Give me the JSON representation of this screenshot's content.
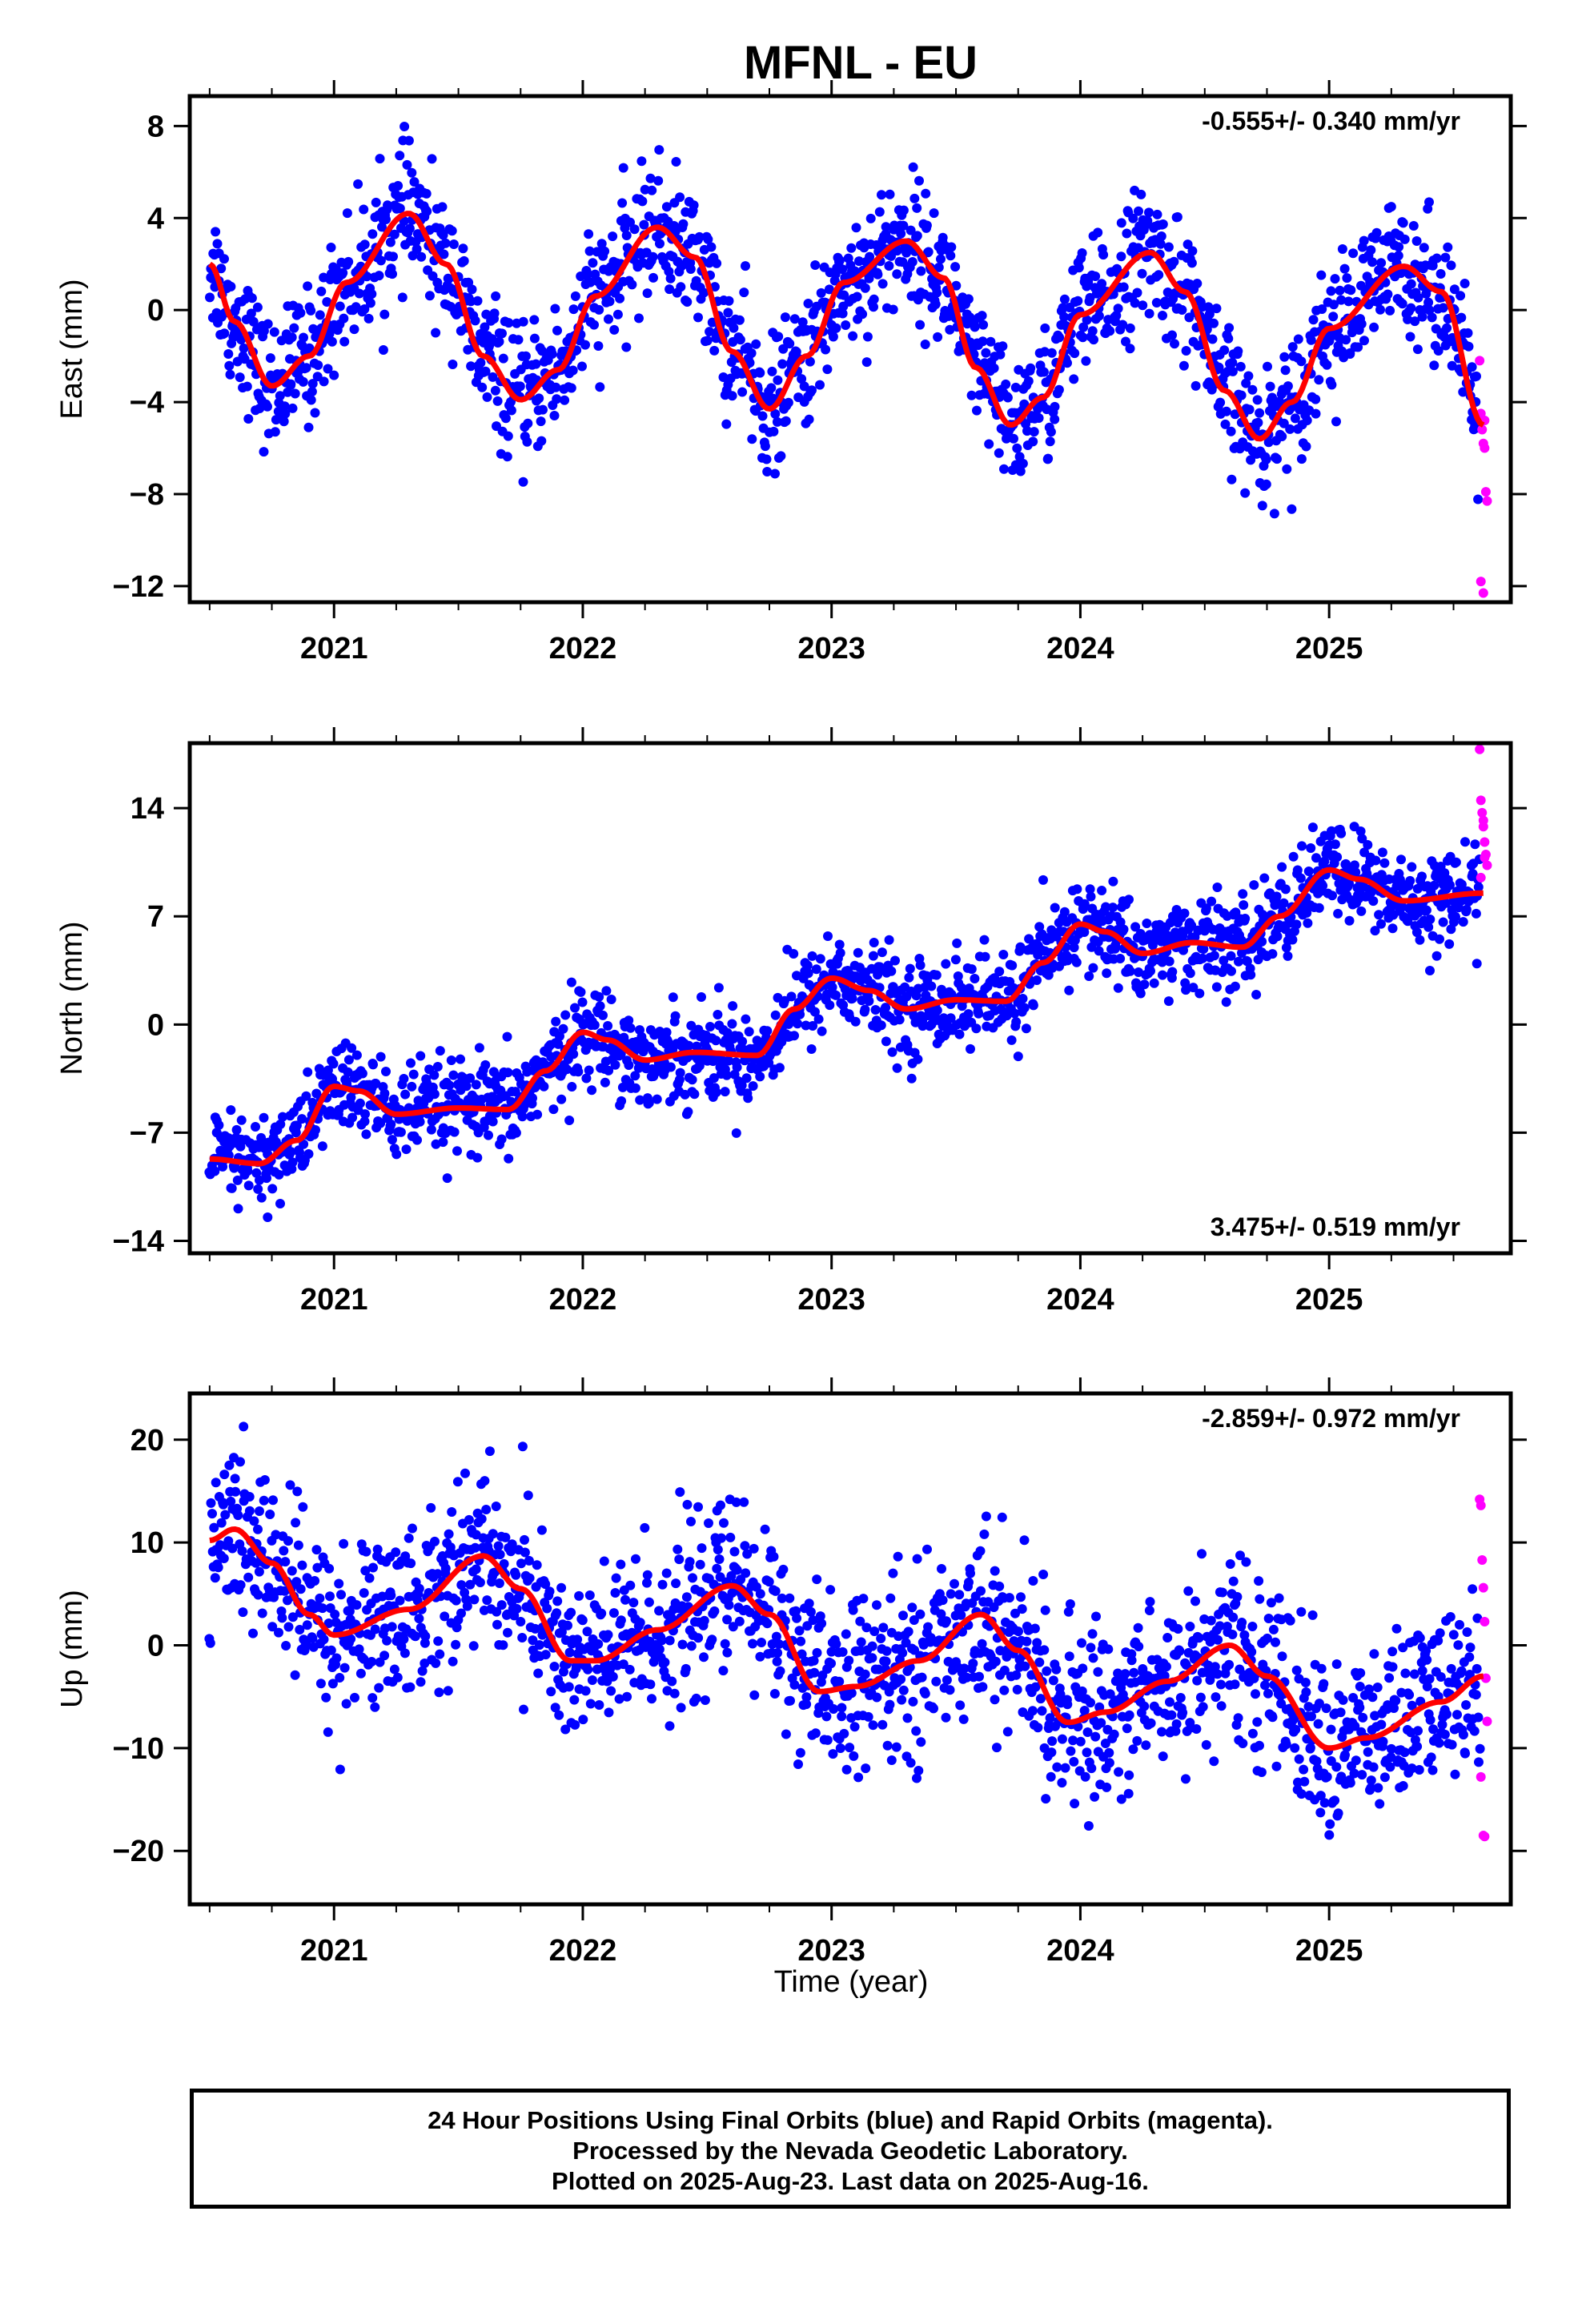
{
  "title": "MFNL - EU",
  "xlabel": "Time (year)",
  "footer": {
    "line1": "24 Hour Positions Using Final Orbits (blue) and Rapid Orbits (magenta).",
    "line2": "Processed by the Nevada Geodetic Laboratory.",
    "line3": "Plotted on 2025-Aug-23. Last data on 2025-Aug-16."
  },
  "colors": {
    "final": "#0000ff",
    "rapid": "#ff00ff",
    "fit": "#ff0000",
    "axes": "#000000"
  },
  "chart_data": [
    {
      "type": "scatter",
      "component": "East",
      "ylabel": "East (mm)",
      "rate": "-0.555+/- 0.340 mm/yr",
      "rate_position": "top-right",
      "xlim": [
        2020.42,
        2025.73
      ],
      "ylim": [
        -12.7,
        9.3
      ],
      "yticks": [
        8,
        4,
        0,
        -4,
        -8,
        -12
      ],
      "ytick_labels": [
        "8",
        "4",
        "0",
        "−4",
        "−8",
        "−12"
      ],
      "xticks": [
        2021,
        2022,
        2023,
        2024,
        2025
      ],
      "xtick_labels": [
        "2021",
        "2022",
        "2023",
        "2024",
        "2025"
      ],
      "trend": [
        [
          2020.5,
          2.0
        ],
        [
          2020.6,
          -0.5
        ],
        [
          2020.75,
          -3.3
        ],
        [
          2020.9,
          -2.0
        ],
        [
          2021.05,
          1.2
        ],
        [
          2021.3,
          4.2
        ],
        [
          2021.45,
          2.0
        ],
        [
          2021.6,
          -2.0
        ],
        [
          2021.75,
          -3.9
        ],
        [
          2021.9,
          -2.6
        ],
        [
          2022.05,
          0.6
        ],
        [
          2022.3,
          3.6
        ],
        [
          2022.45,
          2.3
        ],
        [
          2022.6,
          -1.8
        ],
        [
          2022.75,
          -4.3
        ],
        [
          2022.9,
          -2.0
        ],
        [
          2023.05,
          1.2
        ],
        [
          2023.3,
          3.0
        ],
        [
          2023.45,
          1.4
        ],
        [
          2023.58,
          -2.5
        ],
        [
          2023.72,
          -5.0
        ],
        [
          2023.85,
          -3.8
        ],
        [
          2024.0,
          -0.2
        ],
        [
          2024.28,
          2.5
        ],
        [
          2024.42,
          0.8
        ],
        [
          2024.58,
          -3.5
        ],
        [
          2024.72,
          -5.6
        ],
        [
          2024.85,
          -4.0
        ],
        [
          2025.0,
          -0.8
        ],
        [
          2025.3,
          1.9
        ],
        [
          2025.45,
          0.8
        ],
        [
          2025.62,
          -5.0
        ]
      ],
      "scatter_amplitude": 1.4,
      "rapid": [
        [
          2025.605,
          -2.2
        ],
        [
          2025.61,
          -4.5
        ],
        [
          2025.615,
          -5.2
        ],
        [
          2025.62,
          -5.8
        ],
        [
          2025.625,
          -6.0
        ],
        [
          2025.63,
          -7.9
        ],
        [
          2025.635,
          -8.3
        ],
        [
          2025.61,
          -11.8
        ],
        [
          2025.62,
          -12.3
        ],
        [
          2025.625,
          -4.8
        ]
      ]
    },
    {
      "type": "scatter",
      "component": "North",
      "ylabel": "North (mm)",
      "rate": "3.475+/- 0.519 mm/yr",
      "rate_position": "bottom-right",
      "xlim": [
        2020.42,
        2025.73
      ],
      "ylim": [
        -14.8,
        18.2
      ],
      "yticks": [
        14,
        7,
        0,
        -7,
        -14
      ],
      "ytick_labels": [
        "14",
        "7",
        "0",
        "−7",
        "−14"
      ],
      "xticks": [
        2021,
        2022,
        2023,
        2024,
        2025
      ],
      "xtick_labels": [
        "2021",
        "2022",
        "2023",
        "2024",
        "2025"
      ],
      "trend": [
        [
          2020.5,
          -8.7
        ],
        [
          2020.7,
          -9.0
        ],
        [
          2020.85,
          -7.5
        ],
        [
          2021.0,
          -4.0
        ],
        [
          2021.1,
          -4.3
        ],
        [
          2021.25,
          -5.8
        ],
        [
          2021.5,
          -5.4
        ],
        [
          2021.7,
          -5.5
        ],
        [
          2021.85,
          -3.0
        ],
        [
          2022.0,
          -0.5
        ],
        [
          2022.1,
          -1.0
        ],
        [
          2022.25,
          -2.3
        ],
        [
          2022.45,
          -1.8
        ],
        [
          2022.7,
          -2.0
        ],
        [
          2022.85,
          1.0
        ],
        [
          2023.0,
          3.0
        ],
        [
          2023.15,
          2.2
        ],
        [
          2023.3,
          1.0
        ],
        [
          2023.5,
          1.6
        ],
        [
          2023.7,
          1.5
        ],
        [
          2023.85,
          4.0
        ],
        [
          2024.0,
          6.5
        ],
        [
          2024.1,
          6.0
        ],
        [
          2024.25,
          4.6
        ],
        [
          2024.45,
          5.3
        ],
        [
          2024.65,
          5.0
        ],
        [
          2024.8,
          7.0
        ],
        [
          2025.0,
          10.0
        ],
        [
          2025.12,
          9.4
        ],
        [
          2025.3,
          8.0
        ],
        [
          2025.62,
          8.5
        ]
      ],
      "scatter_amplitude": 1.5,
      "rapid": [
        [
          2025.605,
          17.8
        ],
        [
          2025.61,
          14.5
        ],
        [
          2025.615,
          13.7
        ],
        [
          2025.62,
          12.8
        ],
        [
          2025.625,
          11.8
        ],
        [
          2025.63,
          11.0
        ],
        [
          2025.635,
          10.3
        ],
        [
          2025.61,
          9.5
        ],
        [
          2025.62,
          13.2
        ],
        [
          2025.625,
          10.8
        ]
      ]
    },
    {
      "type": "scatter",
      "component": "Up",
      "ylabel": "Up (mm)",
      "rate": "-2.859+/- 0.972 mm/yr",
      "rate_position": "top-right",
      "xlim": [
        2020.42,
        2025.73
      ],
      "ylim": [
        -25.2,
        24.5
      ],
      "yticks": [
        20,
        10,
        0,
        -10,
        -20
      ],
      "ytick_labels": [
        "20",
        "10",
        "0",
        "−10",
        "−20"
      ],
      "xticks": [
        2021,
        2022,
        2023,
        2024,
        2025
      ],
      "xtick_labels": [
        "2021",
        "2022",
        "2023",
        "2024",
        "2025"
      ],
      "trend": [
        [
          2020.5,
          10.2
        ],
        [
          2020.6,
          11.3
        ],
        [
          2020.75,
          8.0
        ],
        [
          2020.9,
          3.0
        ],
        [
          2021.0,
          1.0
        ],
        [
          2021.3,
          3.5
        ],
        [
          2021.6,
          8.7
        ],
        [
          2021.75,
          5.5
        ],
        [
          2021.95,
          -1.5
        ],
        [
          2022.05,
          -1.5
        ],
        [
          2022.3,
          1.5
        ],
        [
          2022.6,
          5.8
        ],
        [
          2022.75,
          3.0
        ],
        [
          2022.95,
          -4.5
        ],
        [
          2023.1,
          -4.0
        ],
        [
          2023.35,
          -1.5
        ],
        [
          2023.6,
          3.0
        ],
        [
          2023.75,
          -0.5
        ],
        [
          2023.95,
          -7.5
        ],
        [
          2024.1,
          -6.5
        ],
        [
          2024.35,
          -3.5
        ],
        [
          2024.6,
          0.0
        ],
        [
          2024.75,
          -3.0
        ],
        [
          2025.0,
          -10.0
        ],
        [
          2025.15,
          -9.0
        ],
        [
          2025.45,
          -5.5
        ],
        [
          2025.62,
          -3.0
        ]
      ],
      "scatter_amplitude": 4.2,
      "rapid": [
        [
          2025.605,
          14.2
        ],
        [
          2025.61,
          13.6
        ],
        [
          2025.615,
          8.3
        ],
        [
          2025.62,
          5.6
        ],
        [
          2025.625,
          2.3
        ],
        [
          2025.63,
          -3.2
        ],
        [
          2025.635,
          -7.4
        ],
        [
          2025.61,
          -12.8
        ],
        [
          2025.62,
          -18.5
        ],
        [
          2025.625,
          -18.6
        ]
      ]
    }
  ]
}
